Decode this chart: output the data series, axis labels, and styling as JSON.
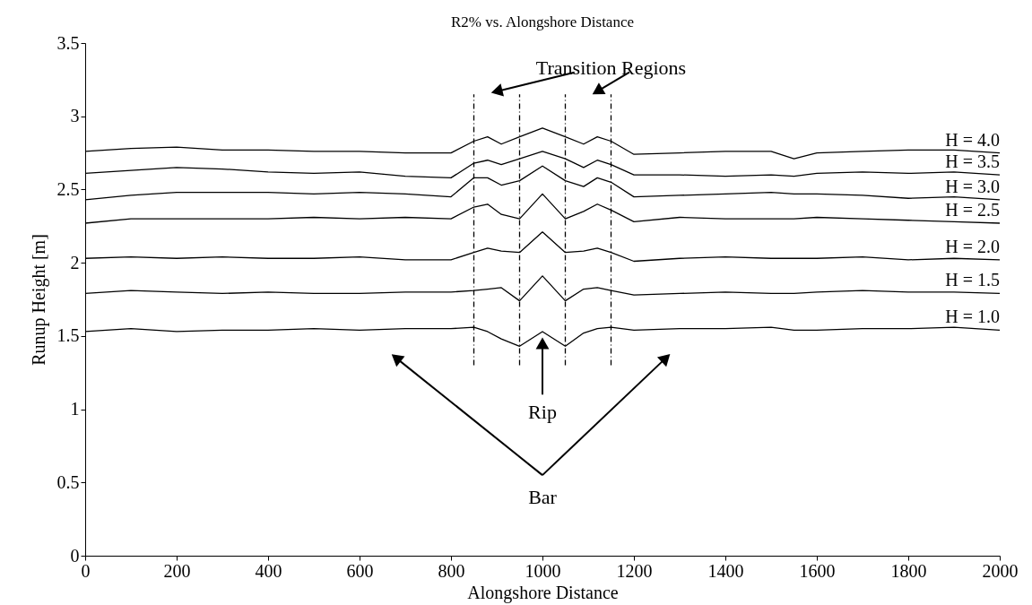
{
  "chart_data": {
    "type": "line",
    "title": "R2% vs. Alongshore Distance",
    "xlabel": "Alongshore Distance",
    "ylabel": "Runup Height [m]",
    "x": [
      0,
      100,
      200,
      300,
      400,
      500,
      600,
      700,
      800,
      850,
      880,
      910,
      950,
      1000,
      1050,
      1090,
      1120,
      1150,
      1200,
      1300,
      1400,
      1500,
      1550,
      1600,
      1700,
      1800,
      1900,
      2000
    ],
    "series": [
      {
        "name": "H = 4.0",
        "color": "#000000",
        "values": [
          2.76,
          2.78,
          2.79,
          2.77,
          2.77,
          2.76,
          2.76,
          2.75,
          2.75,
          2.83,
          2.86,
          2.81,
          2.86,
          2.92,
          2.86,
          2.81,
          2.86,
          2.83,
          2.74,
          2.75,
          2.76,
          2.76,
          2.71,
          2.75,
          2.76,
          2.77,
          2.77,
          2.75
        ]
      },
      {
        "name": "H = 3.5",
        "color": "#000000",
        "values": [
          2.61,
          2.63,
          2.65,
          2.64,
          2.62,
          2.61,
          2.62,
          2.59,
          2.58,
          2.68,
          2.7,
          2.67,
          2.71,
          2.76,
          2.71,
          2.65,
          2.7,
          2.67,
          2.6,
          2.6,
          2.59,
          2.6,
          2.59,
          2.61,
          2.62,
          2.61,
          2.62,
          2.6
        ]
      },
      {
        "name": "H = 3.0",
        "color": "#000000",
        "values": [
          2.43,
          2.46,
          2.48,
          2.48,
          2.48,
          2.47,
          2.48,
          2.47,
          2.45,
          2.58,
          2.58,
          2.53,
          2.56,
          2.66,
          2.56,
          2.52,
          2.58,
          2.55,
          2.45,
          2.46,
          2.47,
          2.48,
          2.47,
          2.47,
          2.46,
          2.44,
          2.45,
          2.43
        ]
      },
      {
        "name": "H = 2.5",
        "color": "#000000",
        "values": [
          2.27,
          2.3,
          2.3,
          2.3,
          2.3,
          2.31,
          2.3,
          2.31,
          2.3,
          2.38,
          2.4,
          2.33,
          2.3,
          2.47,
          2.3,
          2.35,
          2.4,
          2.36,
          2.28,
          2.31,
          2.3,
          2.3,
          2.3,
          2.31,
          2.3,
          2.29,
          2.28,
          2.27
        ]
      },
      {
        "name": "H = 2.0",
        "color": "#000000",
        "values": [
          2.03,
          2.04,
          2.03,
          2.04,
          2.03,
          2.03,
          2.04,
          2.02,
          2.02,
          2.07,
          2.1,
          2.08,
          2.07,
          2.21,
          2.07,
          2.08,
          2.1,
          2.07,
          2.01,
          2.03,
          2.04,
          2.03,
          2.03,
          2.03,
          2.04,
          2.02,
          2.03,
          2.02
        ]
      },
      {
        "name": "H = 1.5",
        "color": "#000000",
        "values": [
          1.79,
          1.81,
          1.8,
          1.79,
          1.8,
          1.79,
          1.79,
          1.8,
          1.8,
          1.81,
          1.82,
          1.83,
          1.74,
          1.91,
          1.74,
          1.82,
          1.83,
          1.81,
          1.78,
          1.79,
          1.8,
          1.79,
          1.79,
          1.8,
          1.81,
          1.8,
          1.8,
          1.79
        ]
      },
      {
        "name": "H = 1.0",
        "color": "#000000",
        "values": [
          1.53,
          1.55,
          1.53,
          1.54,
          1.54,
          1.55,
          1.54,
          1.55,
          1.55,
          1.56,
          1.53,
          1.48,
          1.43,
          1.53,
          1.43,
          1.52,
          1.55,
          1.56,
          1.54,
          1.55,
          1.55,
          1.56,
          1.54,
          1.54,
          1.55,
          1.55,
          1.56,
          1.54
        ]
      },
      {
        "type": "line",
        "line_style": "dashed",
        "color": "#000000",
        "x": [
          850,
          850
        ],
        "values": [
          1.3,
          3.15
        ]
      },
      {
        "type": "line",
        "line_style": "dashed",
        "color": "#000000",
        "x": [
          950,
          950
        ],
        "values": [
          1.3,
          3.15
        ]
      },
      {
        "type": "line",
        "line_style": "dashed",
        "color": "#000000",
        "x": [
          1050,
          1050
        ],
        "values": [
          1.3,
          3.15
        ]
      },
      {
        "type": "line",
        "line_style": "dashed",
        "color": "#000000",
        "x": [
          1150,
          1150
        ],
        "values": [
          1.3,
          3.15
        ]
      }
    ],
    "annotations": [
      "Transition Regions",
      "Rip",
      "Bar"
    ],
    "xlim": [
      0,
      2000
    ],
    "xticks": [
      0,
      200,
      400,
      600,
      800,
      1000,
      1200,
      1400,
      1600,
      1800,
      2000
    ],
    "ylim": [
      0,
      3.5
    ],
    "yticks": [
      0,
      0.5,
      1,
      1.5,
      2,
      2.5,
      3,
      3.5
    ]
  }
}
